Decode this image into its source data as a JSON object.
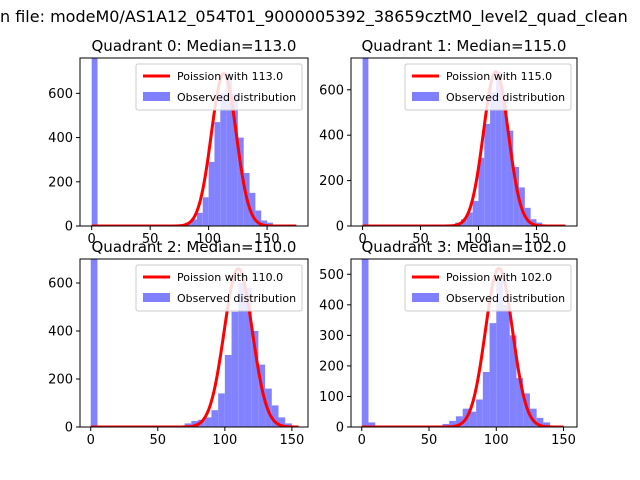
{
  "figure": {
    "suptitle": "n file: modeM0/AS1A12_054T01_9000005392_38659cztM0_level2_quad_clean"
  },
  "colors": {
    "poisson": "#ff0000",
    "observed": "#8080ff",
    "axes": "#000000"
  },
  "chart_data": [
    {
      "type": "bar",
      "title": "Quadrant 0: Median=113.0",
      "legend": [
        "Poission with 113.0",
        "Observed distribution"
      ],
      "legend_position": "top-right",
      "xlim": [
        -10,
        185
      ],
      "ylim": [
        0,
        760
      ],
      "xticks": [
        0,
        50,
        100,
        150
      ],
      "yticks": [
        0,
        200,
        400,
        600
      ],
      "median": 113,
      "fit_amplitude": 690,
      "fit_x_range": [
        0,
        175
      ],
      "bins": [
        [
          0,
          760
        ],
        [
          75,
          5
        ],
        [
          80,
          15
        ],
        [
          85,
          30
        ],
        [
          90,
          60
        ],
        [
          95,
          130
        ],
        [
          100,
          290
        ],
        [
          105,
          470
        ],
        [
          110,
          600
        ],
        [
          115,
          690
        ],
        [
          120,
          600
        ],
        [
          125,
          400
        ],
        [
          130,
          240
        ],
        [
          135,
          150
        ],
        [
          140,
          70
        ],
        [
          145,
          25
        ],
        [
          150,
          15
        ],
        [
          155,
          5
        ]
      ]
    },
    {
      "type": "bar",
      "title": "Quadrant 1: Median=115.0",
      "legend": [
        "Poission with 115.0",
        "Observed distribution"
      ],
      "legend_position": "top-right",
      "xlim": [
        -10,
        185
      ],
      "ylim": [
        0,
        740
      ],
      "xticks": [
        0,
        50,
        100,
        150
      ],
      "yticks": [
        0,
        200,
        400,
        600
      ],
      "median": 115,
      "fit_amplitude": 680,
      "fit_x_range": [
        0,
        175
      ],
      "bins": [
        [
          0,
          740
        ],
        [
          75,
          5
        ],
        [
          80,
          15
        ],
        [
          85,
          30
        ],
        [
          90,
          60
        ],
        [
          95,
          110
        ],
        [
          100,
          300
        ],
        [
          105,
          450
        ],
        [
          110,
          590
        ],
        [
          115,
          680
        ],
        [
          120,
          560
        ],
        [
          125,
          420
        ],
        [
          130,
          260
        ],
        [
          135,
          170
        ],
        [
          140,
          80
        ],
        [
          145,
          30
        ],
        [
          150,
          15
        ],
        [
          155,
          5
        ]
      ]
    },
    {
      "type": "bar",
      "title": "Quadrant 2: Median=110.0",
      "legend": [
        "Poission with 110.0",
        "Observed distribution"
      ],
      "legend_position": "top-right",
      "xlim": [
        -8,
        162
      ],
      "ylim": [
        0,
        700
      ],
      "xticks": [
        0,
        50,
        100,
        150
      ],
      "yticks": [
        0,
        200,
        400,
        600
      ],
      "median": 110,
      "fit_amplitude": 660,
      "fit_x_range": [
        0,
        155
      ],
      "bins": [
        [
          0,
          700
        ],
        [
          70,
          15
        ],
        [
          75,
          25
        ],
        [
          80,
          30
        ],
        [
          85,
          40
        ],
        [
          90,
          70
        ],
        [
          95,
          140
        ],
        [
          100,
          300
        ],
        [
          105,
          480
        ],
        [
          110,
          600
        ],
        [
          115,
          580
        ],
        [
          120,
          400
        ],
        [
          125,
          260
        ],
        [
          130,
          160
        ],
        [
          135,
          90
        ],
        [
          140,
          40
        ],
        [
          145,
          15
        ]
      ]
    },
    {
      "type": "bar",
      "title": "Quadrant 3: Median=102.0",
      "legend": [
        "Poission with 102.0",
        "Observed distribution"
      ],
      "legend_position": "top-right",
      "xlim": [
        -8,
        160
      ],
      "ylim": [
        0,
        550
      ],
      "xticks": [
        0,
        50,
        100,
        150
      ],
      "yticks": [
        0,
        100,
        200,
        300,
        400,
        500
      ],
      "median": 102,
      "fit_amplitude": 520,
      "fit_x_range": [
        0,
        150
      ],
      "bins": [
        [
          0,
          550
        ],
        [
          5,
          15
        ],
        [
          55,
          5
        ],
        [
          60,
          10
        ],
        [
          65,
          20
        ],
        [
          70,
          35
        ],
        [
          75,
          60
        ],
        [
          80,
          50
        ],
        [
          85,
          90
        ],
        [
          90,
          180
        ],
        [
          95,
          340
        ],
        [
          100,
          480
        ],
        [
          105,
          400
        ],
        [
          110,
          300
        ],
        [
          115,
          160
        ],
        [
          120,
          110
        ],
        [
          125,
          60
        ],
        [
          130,
          30
        ],
        [
          135,
          15
        ]
      ]
    }
  ]
}
